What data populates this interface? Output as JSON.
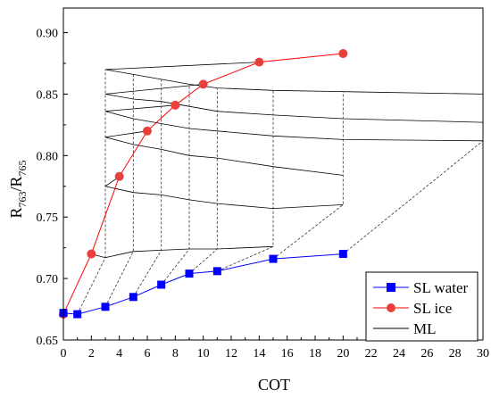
{
  "chart_data": {
    "type": "line",
    "title": "",
    "xlabel": "COT",
    "ylabel_main": "R",
    "ylabel_sub1": "763",
    "ylabel_slash": "/R",
    "ylabel_sub2": "765",
    "xlim": [
      0,
      30
    ],
    "ylim": [
      0.65,
      0.92
    ],
    "x_ticks": [
      0,
      2,
      4,
      6,
      8,
      10,
      12,
      14,
      16,
      18,
      20,
      22,
      24,
      26,
      28,
      30
    ],
    "y_ticks": [
      0.65,
      0.7,
      0.75,
      0.8,
      0.85,
      0.9
    ],
    "grid": false,
    "legend_position": "bottom-right",
    "colors": {
      "sl_water": "#0000ff",
      "sl_ice": "#ff0000",
      "sl_ice_marker": "#e8403c",
      "ml": "#000000"
    },
    "series": [
      {
        "name": "SL water",
        "marker": "square",
        "x": [
          0,
          1,
          3,
          5,
          7,
          9,
          11,
          15,
          20
        ],
        "y": [
          0.672,
          0.671,
          0.677,
          0.685,
          0.695,
          0.704,
          0.706,
          0.716,
          0.72
        ]
      },
      {
        "name": "SL ice",
        "marker": "circle",
        "x": [
          0,
          2,
          4,
          6,
          8,
          10,
          14,
          20
        ],
        "y": [
          0.671,
          0.72,
          0.783,
          0.82,
          0.841,
          0.858,
          0.876,
          0.883
        ]
      },
      {
        "name": "ML",
        "marker": "none",
        "style": "mesh",
        "mesh_cot_ice": [
          2,
          4,
          6,
          8,
          10,
          14
        ],
        "mesh_cot_water": [
          1,
          3,
          5,
          7,
          9,
          11,
          15,
          20,
          30
        ],
        "mesh_y": [
          [
            0.72,
            0.717,
            0.722,
            0.723,
            0.724,
            0.724,
            0.726
          ],
          [
            0.783,
            0.775,
            0.77,
            0.768,
            0.764,
            0.761,
            0.757,
            0.76
          ],
          [
            0.82,
            0.815,
            0.809,
            0.805,
            0.8,
            0.798,
            0.791,
            0.784
          ],
          [
            0.841,
            0.836,
            0.83,
            0.826,
            0.822,
            0.82,
            0.816,
            0.813,
            0.812
          ],
          [
            0.858,
            0.85,
            0.846,
            0.844,
            0.84,
            0.836,
            0.833,
            0.83,
            0.827
          ],
          [
            0.876,
            0.87,
            0.866,
            0.862,
            0.858,
            0.855,
            0.853,
            0.852,
            0.85
          ]
        ]
      }
    ]
  }
}
